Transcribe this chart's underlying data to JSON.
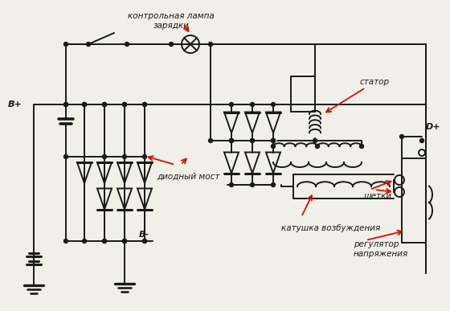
{
  "bg_color": "#f0efe8",
  "line_color": "#1a1a1a",
  "red_color": "#cc1100",
  "label_kontrol": "контрольная лампа\nзарядки",
  "label_stator": "статор",
  "label_diod": "диодный мост",
  "label_katushka": "катушка возбуждения",
  "label_schetki": "щетки",
  "label_regulator": "регулятор\nнапряжения",
  "label_Bplus": "B+",
  "label_Bminus": "B-",
  "label_Dplus": "D+",
  "figsize": [
    5.6,
    3.87
  ],
  "dpi": 100
}
